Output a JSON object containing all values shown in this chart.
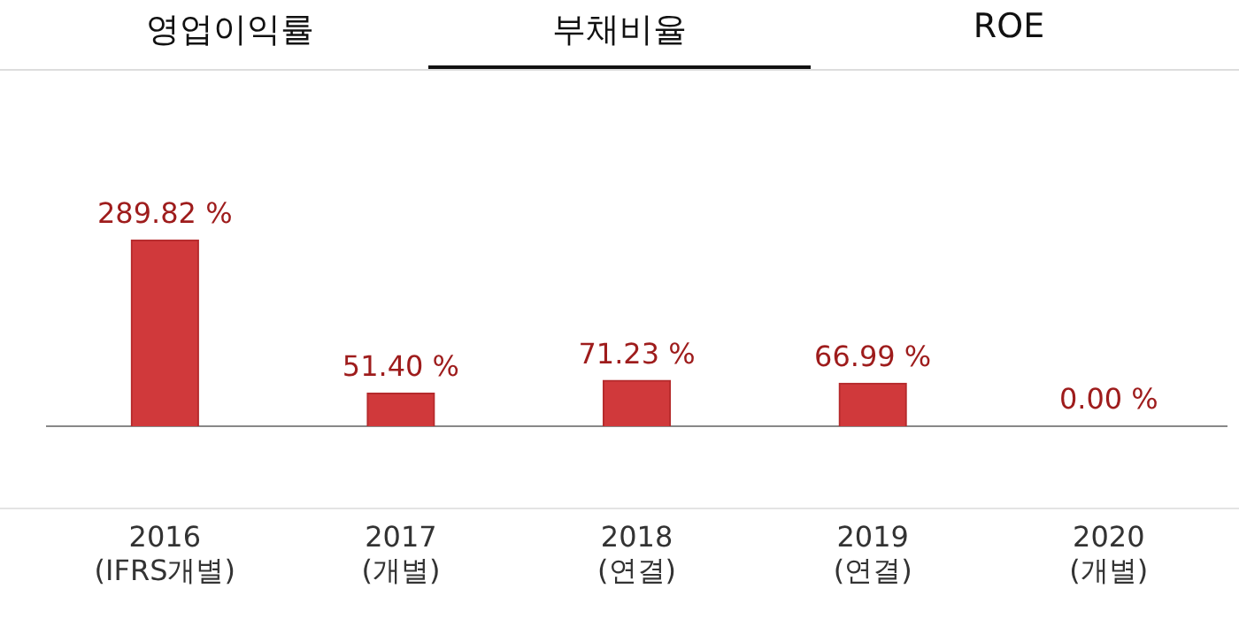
{
  "chart_data": {
    "type": "bar",
    "title": "부채비율",
    "annotations": [
      "영업이익률",
      "ROE"
    ],
    "categories": [
      "2016\n(IFRS개별)",
      "2017\n(개별)",
      "2018\n(연결)",
      "2019\n(연결)",
      "2020\n(개별)"
    ],
    "values": [
      289.82,
      51.4,
      71.23,
      66.99,
      0.0
    ],
    "value_labels": [
      "289.82 %",
      "51.40 %",
      "71.23 %",
      "66.99 %",
      "0.00 %"
    ],
    "color": "#d0393b",
    "grid": false,
    "legend": false
  }
}
